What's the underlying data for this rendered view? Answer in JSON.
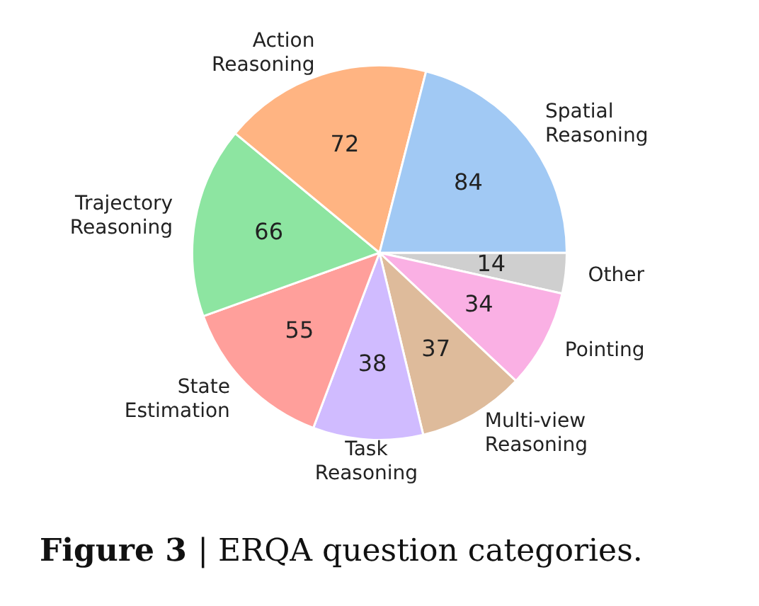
{
  "chart_data": {
    "type": "pie",
    "title": "Figure 3 | ERQA question categories.",
    "categories": [
      "Other",
      "Pointing",
      "Multi-view Reasoning",
      "Task Reasoning",
      "State Estimation",
      "Trajectory Reasoning",
      "Action Reasoning",
      "Spatial Reasoning"
    ],
    "values": [
      14,
      34,
      37,
      38,
      55,
      66,
      72,
      84
    ],
    "colors": [
      "#cfcfcf",
      "#fab0e4",
      "#debb9b",
      "#d0bbff",
      "#ff9f9b",
      "#8de5a1",
      "#ffb482",
      "#a1c9f4"
    ],
    "data_labels": true,
    "legend": false
  }
}
